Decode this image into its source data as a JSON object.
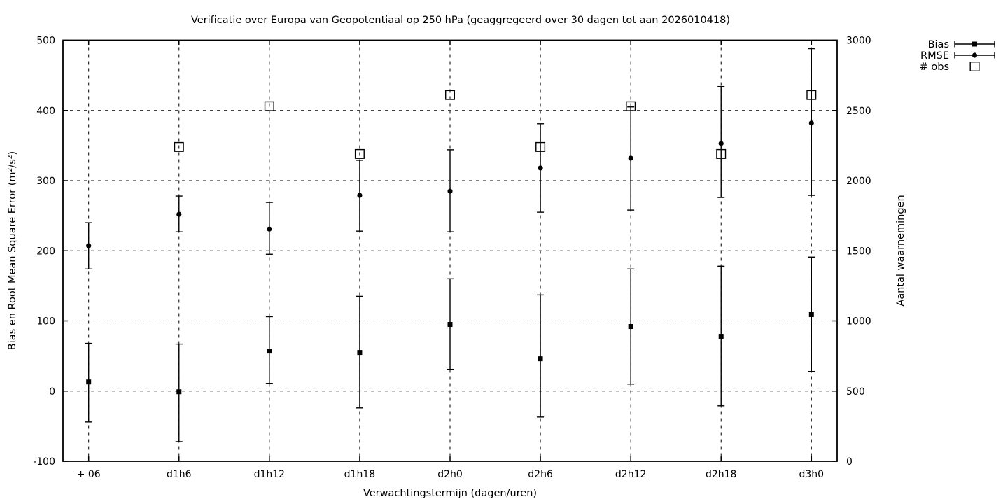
{
  "page": {
    "background": "#ffffff"
  },
  "chart_data": {
    "type": "scatter",
    "title": "Verificatie over Europa van Geopotentiaal op 250 hPa (geaggregeerd over 30 dagen tot aan 2026010418)",
    "xlabel": "Verwachtingstermijn (dagen/uren)",
    "ylabel_left": "Bias en Root Mean Square Error (m²/s²)",
    "ylabel_right": "Aantal waarnemingen",
    "ylim_left": [
      -100,
      500
    ],
    "ylim_right": [
      0,
      3000
    ],
    "yticks_left": [
      -100,
      0,
      100,
      200,
      300,
      400,
      500
    ],
    "yticks_right": [
      0,
      500,
      1000,
      1500,
      2000,
      2500,
      3000
    ],
    "categories": [
      "+ 06",
      "d1h6",
      "d1h12",
      "d1h18",
      "d2h0",
      "d2h6",
      "d2h12",
      "d2h18",
      "d3h0"
    ],
    "grid": "dashed",
    "legend_position": "top-right-outside",
    "colors": {
      "foreground": "#000000",
      "background": "#ffffff"
    },
    "series": [
      {
        "name": "Bias",
        "axis": "left",
        "marker": "filled-square",
        "errorbars": true,
        "values": [
          13,
          -1,
          57,
          55,
          95,
          46,
          92,
          78,
          109
        ],
        "err_low": [
          -44,
          -72,
          11,
          -24,
          31,
          -37,
          10,
          -21,
          28
        ],
        "err_high": [
          68,
          67,
          106,
          135,
          160,
          137,
          174,
          178,
          191
        ]
      },
      {
        "name": "RMSE",
        "axis": "left",
        "marker": "filled-circle",
        "errorbars": true,
        "values": [
          207,
          252,
          231,
          279,
          285,
          318,
          332,
          353,
          382
        ],
        "err_low": [
          174,
          227,
          195,
          228,
          227,
          255,
          258,
          276,
          279
        ],
        "err_high": [
          240,
          278,
          269,
          329,
          344,
          381,
          405,
          434,
          488
        ]
      },
      {
        "name": "# obs",
        "axis": "right",
        "marker": "open-square",
        "errorbars": false,
        "values": [
          null,
          2240,
          2530,
          2190,
          2610,
          2240,
          2530,
          2190,
          2610
        ]
      }
    ]
  }
}
